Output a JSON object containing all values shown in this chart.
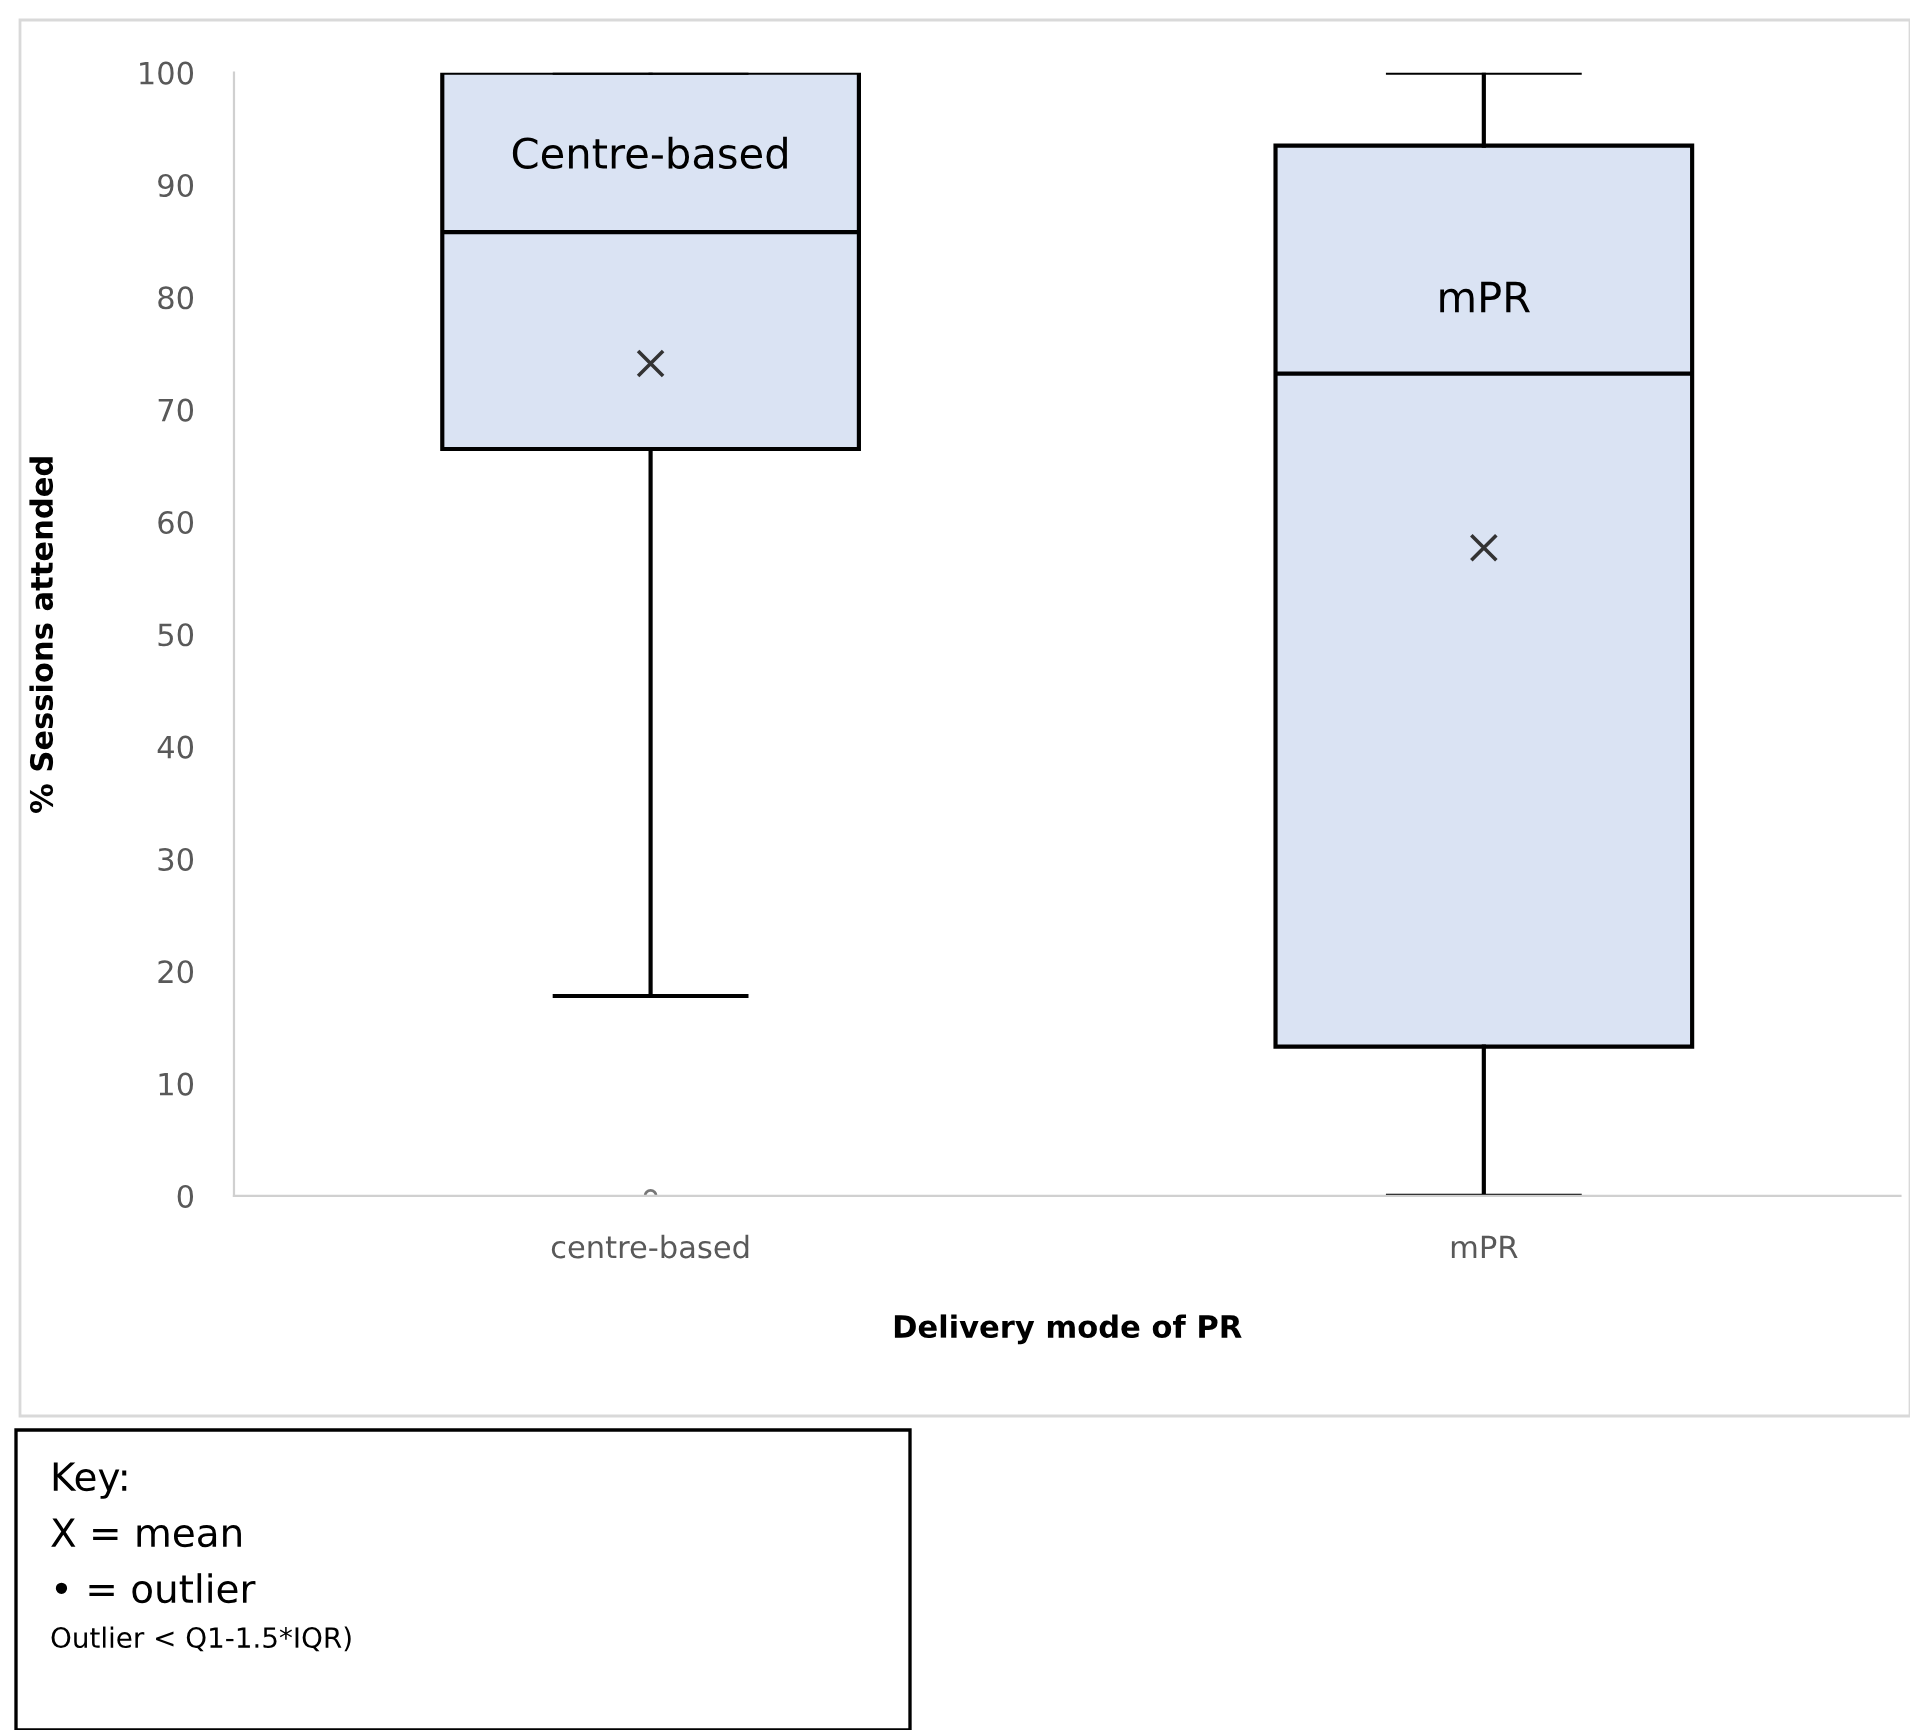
{
  "chart_data": {
    "type": "box",
    "xlabel": "Delivery mode of PR",
    "ylabel": "% Sessions attended",
    "categories": [
      "centre-based",
      "mPR"
    ],
    "boxes": [
      {
        "low": 17.8,
        "q1": 66.5,
        "median": 85.8,
        "q3": 100,
        "high": 100,
        "mean": 74.1,
        "outliers": [
          0
        ]
      },
      {
        "low": 0,
        "q1": 13.3,
        "median": 73.2,
        "q3": 93.5,
        "high": 100,
        "mean": 57.7
      }
    ],
    "color": "#dae3f3",
    "ylim": [
      0,
      100
    ],
    "yticks": [
      0,
      10,
      20,
      30,
      40,
      50,
      60,
      70,
      80,
      90,
      100
    ],
    "grid": false,
    "annotations": [
      "Centre-based",
      "mPR",
      "Key:",
      "X = mean",
      "• = outlier",
      "Outlier < Q1-1.5*IQR)"
    ]
  }
}
